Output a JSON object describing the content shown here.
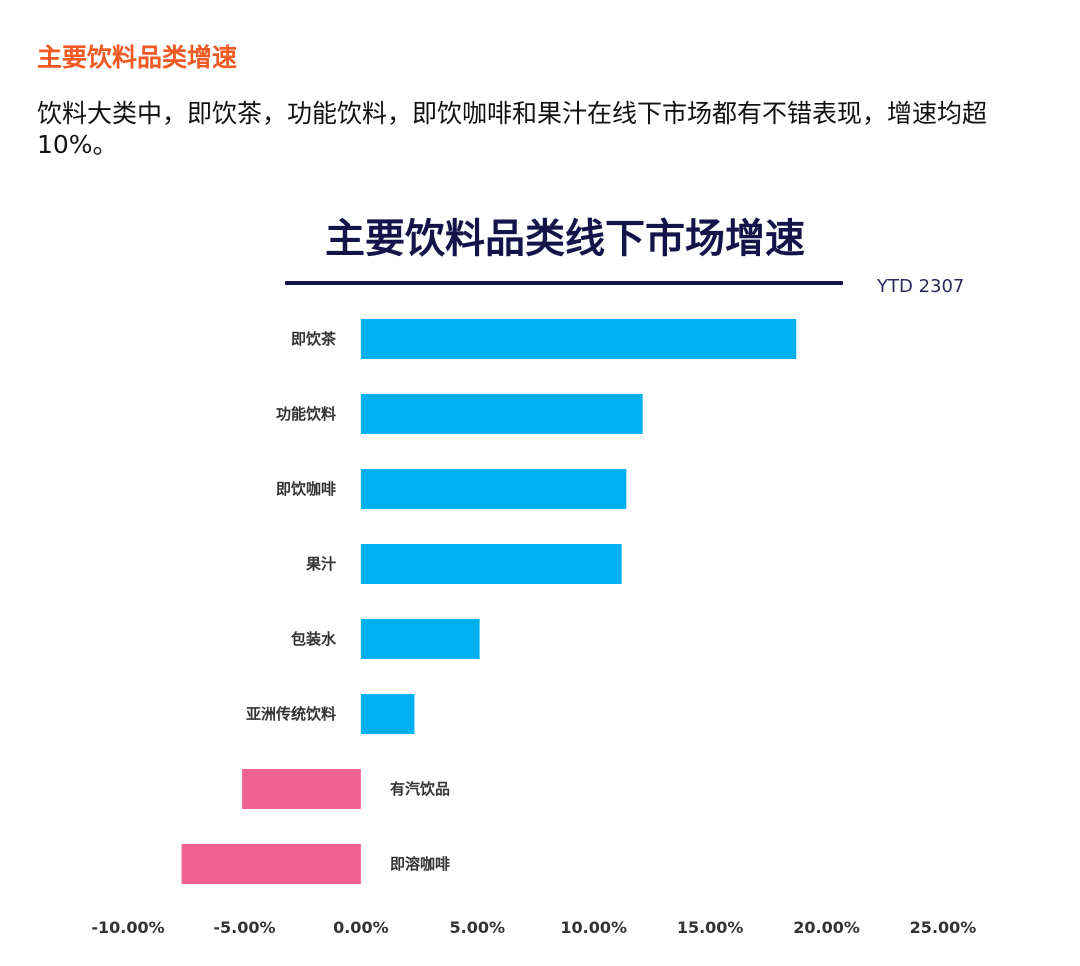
{
  "section_title": "主要饮料品类增速",
  "paragraph": "饮料大类中，即饮茶，功能饮料，即饮咖啡和果汁在线下市场都有不错表现，增速均超10%。",
  "chart_data": {
    "type": "bar",
    "orientation": "horizontal",
    "title": "主要饮料品类线下市场增速",
    "subtitle": "YTD 2307",
    "categories": [
      "即饮茶",
      "功能饮料",
      "即饮咖啡",
      "果汁",
      "包装水",
      "亚洲传统饮料",
      "有汽饮品",
      "即溶咖啡"
    ],
    "values": [
      18.7,
      12.1,
      11.4,
      11.2,
      5.1,
      2.3,
      -5.1,
      -7.7
    ],
    "unit": "%",
    "xlim": [
      -10,
      25
    ],
    "xticks": [
      "-10.00%",
      "-5.00%",
      "0.00%",
      "5.00%",
      "10.00%",
      "15.00%",
      "20.00%",
      "25.00%"
    ],
    "grid": false,
    "legend": "none",
    "colors": {
      "positive": "#00b0ef",
      "negative": "#f06292",
      "title": "#14144a"
    }
  }
}
